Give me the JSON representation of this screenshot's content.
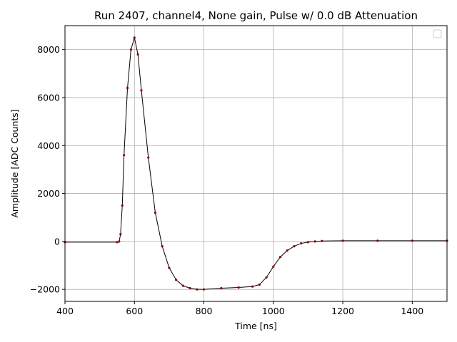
{
  "chart_data": {
    "type": "scatter",
    "title": "Run 2407, channel4, None gain, Pulse w/ 0.0 dB Attenuation",
    "xlabel": "Time [ns]",
    "ylabel": "Amplitude [ADC Counts]",
    "xlim": [
      400,
      1500
    ],
    "ylim": [
      -2500,
      9000
    ],
    "xticks": [
      400,
      600,
      800,
      1000,
      1200,
      1400
    ],
    "yticks": [
      -2000,
      0,
      2000,
      4000,
      6000,
      8000
    ],
    "xtick_labels": [
      "400",
      "600",
      "800",
      "1000",
      "1200",
      "1400"
    ],
    "ytick_labels": [
      "−2000",
      "0",
      "2000",
      "4000",
      "6000",
      "8000"
    ],
    "grid": true,
    "legend": "top-right (empty)",
    "marker_color": "#8b0000",
    "line_color": "#000000",
    "series": [
      {
        "x": [
          400,
          550,
          556,
          560,
          565,
          570,
          580,
          590,
          600,
          610,
          620,
          640,
          660,
          680,
          700,
          720,
          740,
          760,
          780,
          800,
          850,
          900,
          940,
          960,
          980,
          1000,
          1020,
          1040,
          1060,
          1080,
          1100,
          1120,
          1140,
          1200,
          1300,
          1400,
          1500
        ],
        "y": [
          -30,
          -30,
          0,
          300,
          1500,
          3600,
          6400,
          8000,
          8500,
          7800,
          6300,
          3500,
          1200,
          -200,
          -1100,
          -1600,
          -1850,
          -1950,
          -2000,
          -2000,
          -1950,
          -1920,
          -1880,
          -1800,
          -1500,
          -1050,
          -650,
          -380,
          -200,
          -80,
          -30,
          0,
          20,
          30,
          30,
          30,
          30
        ]
      }
    ]
  }
}
